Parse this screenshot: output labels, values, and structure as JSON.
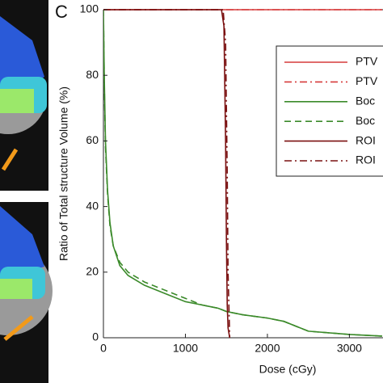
{
  "panel_label": "C",
  "chart_data": {
    "type": "line",
    "xlabel": "Dose (cGy)",
    "ylabel": "Ratio of Total structure Volume (%)",
    "xlim": [
      0,
      3400
    ],
    "ylim": [
      0,
      100
    ],
    "xticks": [
      0,
      1000,
      2000,
      3000
    ],
    "yticks": [
      0,
      20,
      40,
      60,
      80,
      100
    ],
    "series": [
      {
        "name": "PTV",
        "color": "#d63a3a",
        "style": "solid",
        "x": [
          0,
          3400
        ],
        "values": [
          100,
          100
        ]
      },
      {
        "name": "PTV",
        "color": "#d63a3a",
        "style": "dashdot",
        "x": [
          0,
          3400
        ],
        "values": [
          100,
          100
        ]
      },
      {
        "name": "Boc",
        "color": "#3b8a2a",
        "style": "solid",
        "x": [
          0,
          10,
          25,
          50,
          80,
          120,
          200,
          300,
          500,
          800,
          1000,
          1200,
          1400,
          1500,
          1700,
          2000,
          2200,
          2500,
          3000,
          3400
        ],
        "values": [
          100,
          80,
          60,
          45,
          35,
          28,
          22,
          19,
          16,
          13,
          11,
          10,
          9,
          8,
          7,
          6,
          5,
          2,
          1,
          0.5
        ]
      },
      {
        "name": "Boc",
        "color": "#3b8a2a",
        "style": "dashed",
        "x": [
          0,
          10,
          25,
          50,
          80,
          120,
          200,
          300,
          500,
          800,
          1000,
          1200,
          1400,
          1500,
          1700,
          2000,
          2200,
          2500,
          3000,
          3400
        ],
        "values": [
          100,
          78,
          58,
          44,
          34,
          28,
          23,
          20,
          17,
          14,
          12,
          10,
          9,
          8,
          7,
          6,
          5,
          2,
          1,
          0.5
        ]
      },
      {
        "name": "ROI",
        "color": "#7a1010",
        "style": "solid",
        "x": [
          0,
          1440,
          1470,
          1490,
          1500,
          1510,
          1520,
          1540
        ],
        "values": [
          100,
          100,
          95,
          60,
          30,
          10,
          3,
          0
        ]
      },
      {
        "name": "ROI",
        "color": "#7a1010",
        "style": "dashdot",
        "x": [
          0,
          1460,
          1490,
          1510,
          1520,
          1540
        ],
        "values": [
          100,
          100,
          90,
          50,
          20,
          0
        ]
      }
    ]
  }
}
